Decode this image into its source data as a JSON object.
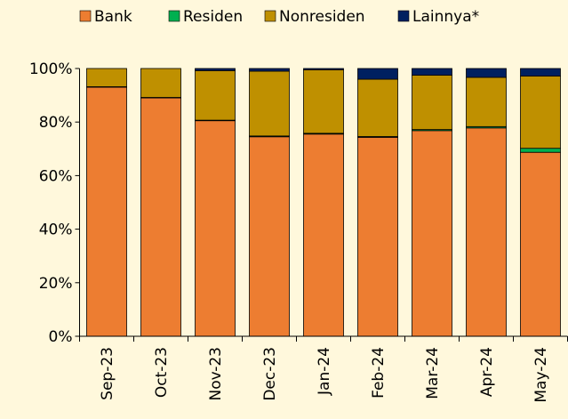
{
  "chart_data": {
    "type": "stacked_bar",
    "categories": [
      "Sep-23",
      "Oct-23",
      "Nov-23",
      "Dec-23",
      "Jan-24",
      "Feb-24",
      "Mar-24",
      "Apr-24",
      "May-24"
    ],
    "series": [
      {
        "name": "Bank",
        "color": "#ed7d31",
        "values": [
          93,
          89,
          80.5,
          74.5,
          75.5,
          74.3,
          76.8,
          77.8,
          68.7
        ]
      },
      {
        "name": "Residen",
        "color": "#00b050",
        "values": [
          0.2,
          0.2,
          0.2,
          0.3,
          0.3,
          0.3,
          0.4,
          0.5,
          1.5
        ]
      },
      {
        "name": "Nonresiden",
        "color": "#bf9000",
        "values": [
          6.8,
          10.8,
          18.5,
          24.2,
          23.7,
          21.4,
          20.3,
          18.4,
          27
        ]
      },
      {
        "name": "Lainnya*",
        "color": "#002060",
        "values": [
          0,
          0,
          0.8,
          1,
          0.5,
          4,
          2.5,
          3.3,
          2.8
        ]
      }
    ],
    "ylim": [
      0,
      100
    ],
    "yticks": [
      {
        "value": 0,
        "label": "0%"
      },
      {
        "value": 20,
        "label": "20%"
      },
      {
        "value": 40,
        "label": "40%"
      },
      {
        "value": 60,
        "label": "60%"
      },
      {
        "value": 80,
        "label": "80%"
      },
      {
        "value": 100,
        "label": "100%"
      }
    ],
    "legend": "top"
  }
}
